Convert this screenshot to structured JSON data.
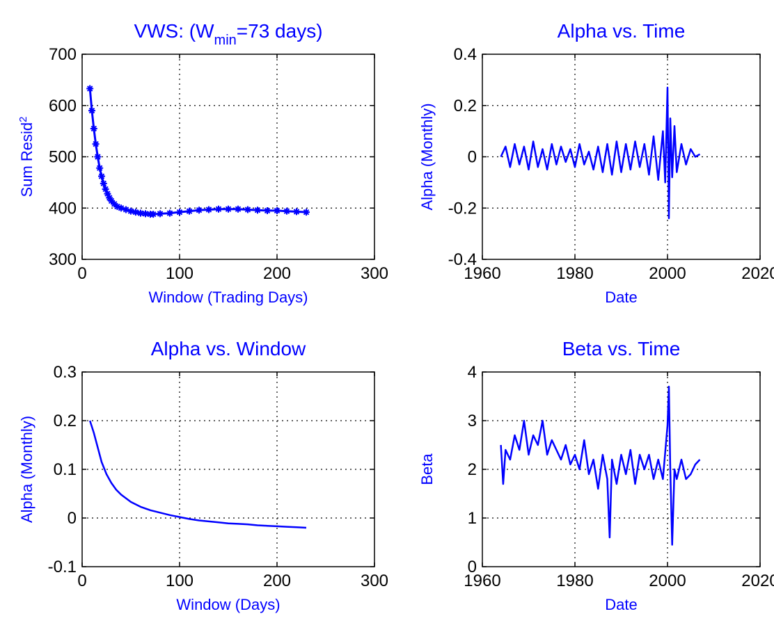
{
  "colors": {
    "series": "#0000ff",
    "text": "#0000ff",
    "axes": "#000000",
    "background": "#ffffff"
  },
  "chart_data": [
    {
      "id": "top-left",
      "type": "scatter",
      "marker": "star",
      "title": "VWS: (W",
      "title_sub": "min",
      "title_rest": "=73 days)",
      "xlabel": "Window (Trading Days)",
      "ylabel": "Sum Resid",
      "ylabel_sup": "2",
      "xlim": [
        0,
        300
      ],
      "ylim": [
        300,
        700
      ],
      "xticks": [
        "0",
        "100",
        "200",
        "300"
      ],
      "yticks": [
        "300",
        "400",
        "500",
        "600",
        "700"
      ],
      "grid": true,
      "series": [
        {
          "x": [
            8,
            10,
            12,
            14,
            16,
            18,
            20,
            22,
            24,
            26,
            28,
            30,
            33,
            36,
            40,
            45,
            50,
            55,
            60,
            65,
            70,
            73,
            80,
            90,
            100,
            110,
            120,
            130,
            140,
            150,
            160,
            170,
            180,
            190,
            200,
            210,
            220,
            230
          ],
          "y": [
            633,
            590,
            555,
            525,
            500,
            478,
            462,
            448,
            437,
            428,
            420,
            414,
            408,
            403,
            400,
            397,
            394,
            392,
            390,
            389,
            388,
            388,
            389,
            390,
            392,
            394,
            396,
            397,
            398,
            398,
            398,
            397,
            396,
            395,
            395,
            394,
            393,
            392
          ]
        }
      ]
    },
    {
      "id": "top-right",
      "type": "line",
      "title": "Alpha vs. Time",
      "xlabel": "Date",
      "ylabel": "Alpha (Monthly)",
      "xlim": [
        1960,
        2020
      ],
      "ylim": [
        -0.4,
        0.4
      ],
      "xticks": [
        "1960",
        "1980",
        "2000",
        "2020"
      ],
      "yticks": [
        "-0.4",
        "-0.2",
        "0",
        "0.2",
        "0.4"
      ],
      "grid": true,
      "series": [
        {
          "x": [
            1964,
            1965,
            1966,
            1967,
            1968,
            1969,
            1970,
            1971,
            1972,
            1973,
            1974,
            1975,
            1976,
            1977,
            1978,
            1979,
            1980,
            1981,
            1982,
            1983,
            1984,
            1985,
            1986,
            1987,
            1988,
            1989,
            1990,
            1991,
            1992,
            1993,
            1994,
            1995,
            1996,
            1997,
            1998,
            1999,
            1999.5,
            2000,
            2000.3,
            2000.6,
            2001,
            2001.5,
            2002,
            2003,
            2004,
            2005,
            2006,
            2007
          ],
          "y": [
            0.0,
            0.04,
            -0.04,
            0.05,
            -0.03,
            0.04,
            -0.05,
            0.06,
            -0.04,
            0.03,
            -0.05,
            0.05,
            -0.03,
            0.04,
            -0.02,
            0.03,
            -0.04,
            0.05,
            -0.03,
            0.02,
            -0.05,
            0.04,
            -0.06,
            0.05,
            -0.07,
            0.06,
            -0.06,
            0.05,
            -0.05,
            0.06,
            -0.04,
            0.05,
            -0.07,
            0.08,
            -0.09,
            0.1,
            -0.1,
            0.27,
            -0.24,
            0.15,
            -0.08,
            0.12,
            -0.06,
            0.05,
            -0.03,
            0.03,
            0.0,
            0.01
          ]
        }
      ]
    },
    {
      "id": "bottom-left",
      "type": "line",
      "title": "Alpha vs. Window",
      "xlabel": "Window (Days)",
      "ylabel": "Alpha (Monthly)",
      "xlim": [
        0,
        300
      ],
      "ylim": [
        -0.1,
        0.3
      ],
      "xticks": [
        "0",
        "100",
        "200",
        "300"
      ],
      "yticks": [
        "-0.1",
        "0",
        "0.1",
        "0.2",
        "0.3"
      ],
      "grid": true,
      "series": [
        {
          "x": [
            8,
            12,
            16,
            20,
            25,
            30,
            35,
            40,
            50,
            60,
            70,
            80,
            90,
            100,
            110,
            120,
            130,
            140,
            150,
            160,
            170,
            180,
            190,
            200,
            210,
            220,
            230
          ],
          "y": [
            0.2,
            0.175,
            0.145,
            0.115,
            0.09,
            0.072,
            0.058,
            0.048,
            0.033,
            0.023,
            0.016,
            0.011,
            0.006,
            0.002,
            -0.002,
            -0.005,
            -0.007,
            -0.009,
            -0.011,
            -0.012,
            -0.013,
            -0.015,
            -0.016,
            -0.017,
            -0.018,
            -0.019,
            -0.02
          ]
        }
      ]
    },
    {
      "id": "bottom-right",
      "type": "line",
      "title": "Beta vs. Time",
      "xlabel": "Date",
      "ylabel": "Beta",
      "xlim": [
        1960,
        2020
      ],
      "ylim": [
        0,
        4
      ],
      "xticks": [
        "1960",
        "1980",
        "2000",
        "2020"
      ],
      "yticks": [
        "0",
        "1",
        "2",
        "3",
        "4"
      ],
      "grid": true,
      "series": [
        {
          "x": [
            1964,
            1964.5,
            1965,
            1966,
            1967,
            1968,
            1969,
            1970,
            1971,
            1972,
            1973,
            1974,
            1975,
            1976,
            1977,
            1978,
            1979,
            1980,
            1981,
            1982,
            1983,
            1984,
            1985,
            1986,
            1987,
            1987.5,
            1988,
            1989,
            1990,
            1991,
            1992,
            1993,
            1994,
            1995,
            1996,
            1997,
            1998,
            1999,
            2000,
            2000.3,
            2000.6,
            2001,
            2001.5,
            2002,
            2003,
            2004,
            2005,
            2006,
            2007
          ],
          "y": [
            2.5,
            1.7,
            2.4,
            2.2,
            2.7,
            2.4,
            3.0,
            2.3,
            2.7,
            2.5,
            3.0,
            2.3,
            2.6,
            2.4,
            2.2,
            2.5,
            2.1,
            2.3,
            2.0,
            2.6,
            1.9,
            2.2,
            1.6,
            2.3,
            1.8,
            0.6,
            2.2,
            1.7,
            2.3,
            1.9,
            2.4,
            1.7,
            2.3,
            2.0,
            2.3,
            1.8,
            2.2,
            1.8,
            2.9,
            3.7,
            2.0,
            0.45,
            2.0,
            1.8,
            2.2,
            1.8,
            1.9,
            2.1,
            2.2
          ]
        }
      ]
    }
  ]
}
